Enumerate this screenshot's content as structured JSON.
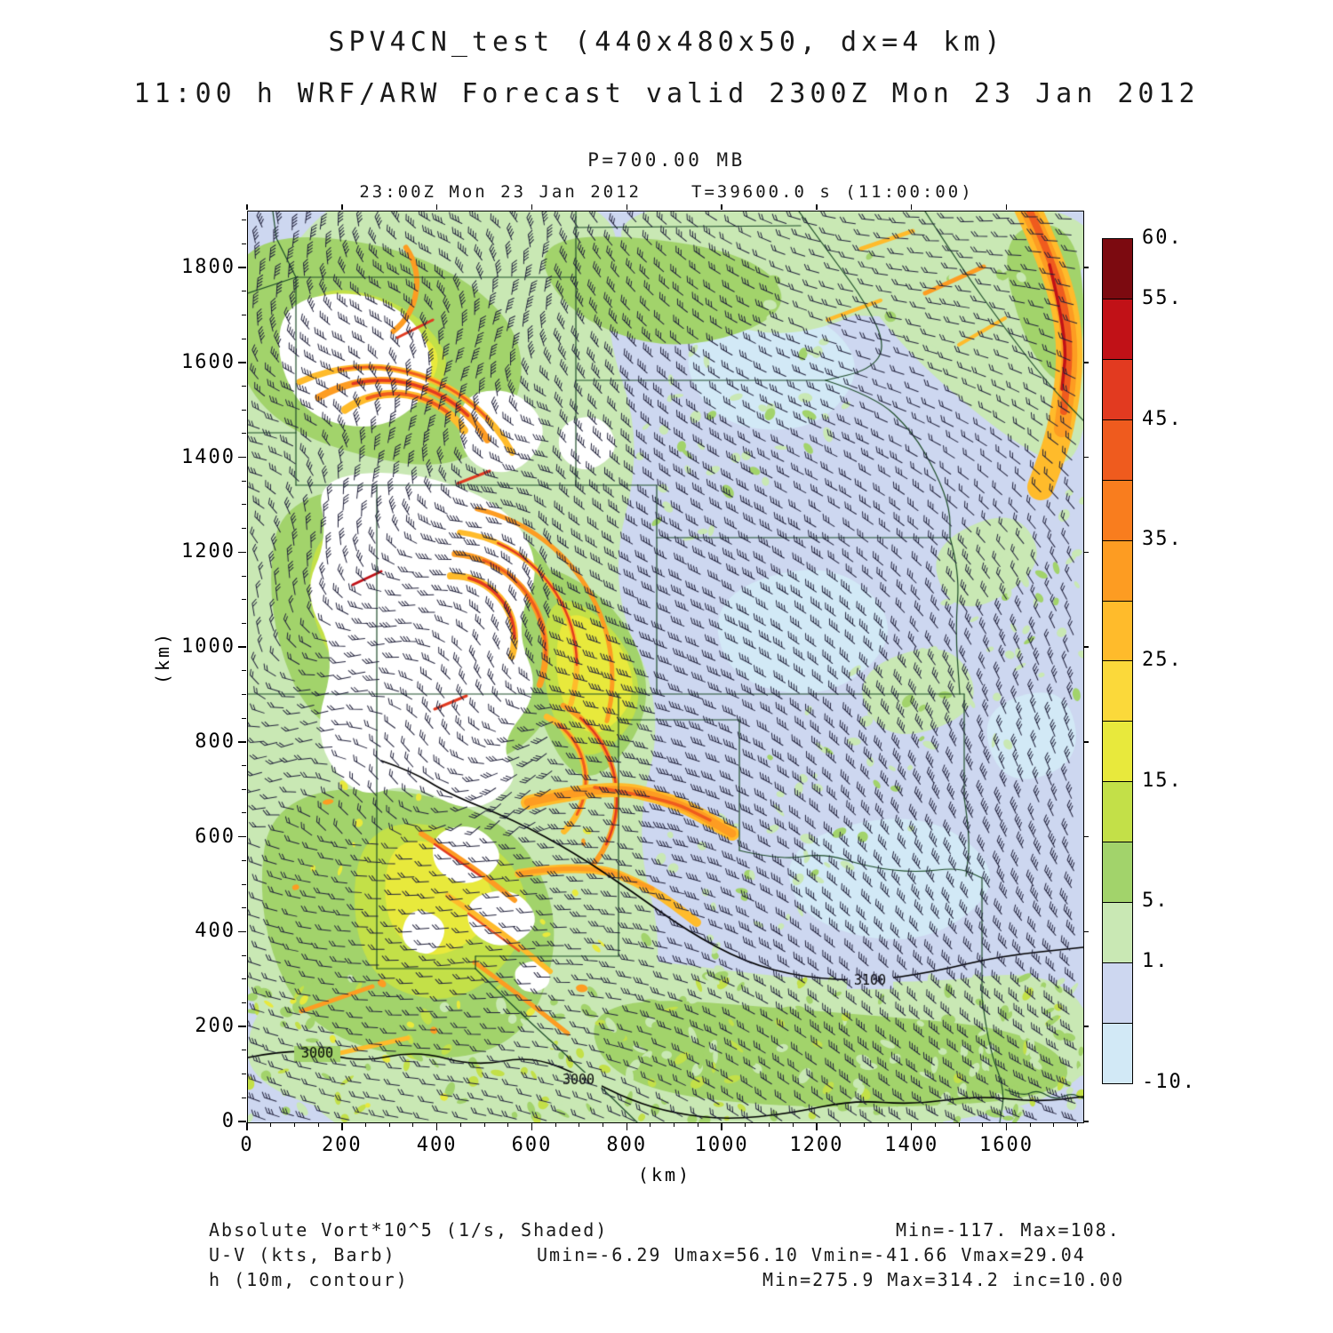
{
  "header": {
    "title": "SPV4CN_test (440x480x50, dx=4 km)",
    "subtitle": "11:00 h WRF/ARW Forecast valid 2300Z Mon 23 Jan 2012",
    "pressure_level": "P=700.00 MB",
    "valid_time": "23:00Z Mon 23 Jan 2012",
    "forecast_seconds": "T=39600.0 s (11:00:00)"
  },
  "axes": {
    "x_label": "(km)",
    "y_label": "(km)",
    "x_ticks": [
      0,
      200,
      400,
      600,
      800,
      1000,
      1200,
      1400,
      1600
    ],
    "y_ticks": [
      0,
      200,
      400,
      600,
      800,
      1000,
      1200,
      1400,
      1600,
      1800
    ],
    "x_max_km": 1760,
    "y_max_km": 1920
  },
  "colorbar": {
    "levels": [
      60,
      55,
      50,
      45,
      40,
      35,
      30,
      25,
      20,
      15,
      10,
      5,
      1,
      -5,
      -10
    ],
    "colors": [
      "#7c0a10",
      "#c11117",
      "#e23a20",
      "#ef5b1e",
      "#f97d1e",
      "#fd9c22",
      "#ffbb2b",
      "#fbd93a",
      "#e8e93c",
      "#c3e048",
      "#a2d36b",
      "#c9e8b4",
      "#cdd7f0",
      "#d2e9f6"
    ],
    "labels": [
      {
        "text": "60.",
        "index": 0
      },
      {
        "text": "55.",
        "index": 1
      },
      {
        "text": "45.",
        "index": 3
      },
      {
        "text": "35.",
        "index": 5
      },
      {
        "text": "25.",
        "index": 7
      },
      {
        "text": "15.",
        "index": 9
      },
      {
        "text": "5.",
        "index": 11
      },
      {
        "text": "1.",
        "index": 12
      },
      {
        "text": "-10.",
        "index": 14
      }
    ]
  },
  "legend": {
    "rows": [
      {
        "label": "Absolute Vort*10^5 (1/s, Shaded)",
        "stats": "Min=-117. Max=108."
      },
      {
        "label": "U-V (kts, Barb)",
        "stats": "Umin=-6.29 Umax=56.10 Vmin=-41.66 Vmax=29.04"
      },
      {
        "label": "h (10m, contour)",
        "stats": "Min=275.9 Max=314.2 inc=10.00"
      }
    ]
  },
  "chart_data": {
    "type": "heatmap",
    "title": "SPV4CN_test (440x480x50, dx=4 km)",
    "subtitle": "11:00 h WRF/ARW Forecast valid 2300Z Mon 23 Jan 2012",
    "grid": "440x480x50",
    "dx_km": 4,
    "forecast_hour": "11:00 h",
    "pressure_level_mb": 700.0,
    "valid": "23:00Z Mon 23 Jan 2012",
    "t_seconds": 39600.0,
    "xlabel": "(km)",
    "ylabel": "(km)",
    "xlim": [
      0,
      1760
    ],
    "ylim": [
      0,
      1920
    ],
    "x_ticks": [
      0,
      200,
      400,
      600,
      800,
      1000,
      1200,
      1400,
      1600
    ],
    "y_ticks": [
      0,
      200,
      400,
      600,
      800,
      1000,
      1200,
      1400,
      1600,
      1800
    ],
    "shaded_field": {
      "name": "Absolute Vort*10^5 (1/s, Shaded)",
      "min": -117.0,
      "max": 108.0,
      "levels": [
        60,
        55,
        50,
        45,
        40,
        35,
        30,
        25,
        20,
        15,
        10,
        5,
        1,
        -5,
        -10
      ]
    },
    "wind_barbs": {
      "name": "U-V (kts, Barb)",
      "umin": -6.29,
      "umax": 56.1,
      "vmin": -41.66,
      "vmax": 29.04
    },
    "height_contours": {
      "name": "h (10m, contour)",
      "min": 275.9,
      "max": 314.2,
      "inc": 10.0,
      "labeled": [
        "3000",
        "3100"
      ]
    }
  }
}
